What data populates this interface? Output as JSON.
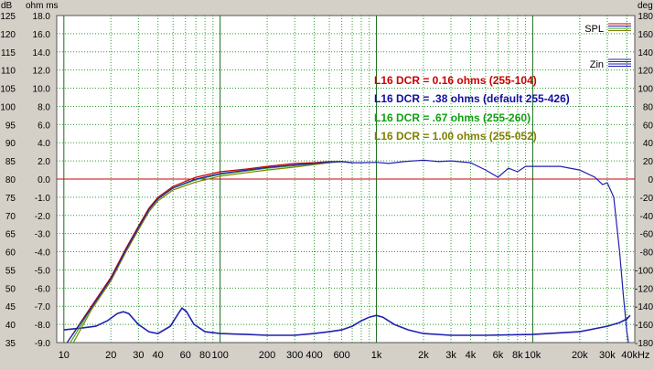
{
  "chart_data": {
    "type": "line",
    "x_scale": "log",
    "xlim": [
      9,
      45000
    ],
    "x_ticks": [
      10,
      20,
      30,
      40,
      60,
      80,
      100,
      200,
      300,
      400,
      600,
      1000,
      2000,
      3000,
      4000,
      6000,
      8000,
      10000,
      20000,
      30000,
      40000
    ],
    "x_tick_labels": [
      "10",
      "20",
      "30",
      "40",
      "60",
      "80",
      "100",
      "200",
      "300",
      "400",
      "600",
      "1k",
      "2k",
      "3k",
      "4k",
      "6k",
      "8k",
      "10k",
      "20k",
      "30k",
      "40kHz"
    ],
    "grid": true,
    "left_axes": [
      {
        "label": "dB",
        "ticks": [
          "125",
          "120",
          "115",
          "110",
          "105",
          "100",
          "95",
          "90",
          "85",
          "80",
          "75",
          "70",
          "65",
          "60",
          "55",
          "50",
          "45",
          "40",
          "35"
        ]
      },
      {
        "label": "ohm ms",
        "ticks": [
          "18.0",
          "16.0",
          "14.0",
          "12.0",
          "10.0",
          "8.0",
          "6.0",
          "4.0",
          "2.0",
          "0.0",
          "-1.0",
          "-2.0",
          "-3.0",
          "-4.0",
          "-5.0",
          "-6.0",
          "-7.0",
          "-8.0",
          "-9.0"
        ]
      }
    ],
    "spl_ylim": [
      35,
      125
    ],
    "right_axis": {
      "label": "deg",
      "ylim": [
        -180,
        180
      ],
      "ticks": [
        "180",
        "160",
        "140",
        "120",
        "100",
        "80",
        "60",
        "40",
        "20",
        "0",
        "-20",
        "-40",
        "-60",
        "-80",
        "-100",
        "-120",
        "-140",
        "-160",
        "-180"
      ]
    },
    "reference_line": {
      "axis": "spl",
      "y": 80,
      "color": "#cc0000"
    },
    "legend": {
      "position": "top-right",
      "items": [
        {
          "label": "SPL",
          "colors": [
            "#cc0000",
            "#2020b0",
            "#20b020",
            "#808000"
          ]
        },
        {
          "label": "Zin",
          "colors": [
            "#2020b0",
            "#2020b0",
            "#2020b0",
            "#2020b0"
          ]
        }
      ]
    },
    "annotations": [
      {
        "text": "L16 DCR = 0.16 ohms (255-104)",
        "color": "#cc0000"
      },
      {
        "text": "L16 DCR = .38 ohms (default 255-426)",
        "color": "#1010a0"
      },
      {
        "text": "L16 DCR = .67 ohms (255-260)",
        "color": "#10a010"
      },
      {
        "text": "L16 DCR = 1.00 ohms (255-052)",
        "color": "#808000"
      }
    ],
    "spl_series": [
      {
        "color": "#cc0000",
        "points": [
          [
            10.5,
            35
          ],
          [
            15,
            45
          ],
          [
            20,
            53
          ],
          [
            25,
            61
          ],
          [
            30,
            67
          ],
          [
            35,
            72
          ],
          [
            40,
            75
          ],
          [
            50,
            78
          ],
          [
            70,
            80.5
          ],
          [
            100,
            82
          ],
          [
            150,
            82.8
          ],
          [
            200,
            83.5
          ],
          [
            300,
            84.3
          ],
          [
            400,
            84.5
          ],
          [
            500,
            84.8
          ],
          [
            600,
            84.8
          ],
          [
            700,
            84.5
          ]
        ]
      },
      {
        "color": "#20b020",
        "points": [
          [
            11,
            35
          ],
          [
            15,
            44.5
          ],
          [
            20,
            52.5
          ],
          [
            25,
            60.5
          ],
          [
            30,
            66.5
          ],
          [
            35,
            71.5
          ],
          [
            40,
            74.5
          ],
          [
            50,
            77.5
          ],
          [
            70,
            79.8
          ],
          [
            100,
            81.3
          ],
          [
            150,
            82.3
          ],
          [
            200,
            83
          ],
          [
            300,
            83.7
          ],
          [
            400,
            84.2
          ],
          [
            500,
            84.6
          ],
          [
            600,
            84.8
          ],
          [
            700,
            84.5
          ]
        ]
      },
      {
        "color": "#808000",
        "points": [
          [
            11.5,
            35
          ],
          [
            15,
            44
          ],
          [
            20,
            52
          ],
          [
            25,
            60
          ],
          [
            30,
            66
          ],
          [
            35,
            71
          ],
          [
            40,
            74
          ],
          [
            50,
            77
          ],
          [
            70,
            79.2
          ],
          [
            100,
            80.8
          ],
          [
            150,
            81.8
          ],
          [
            200,
            82.5
          ],
          [
            300,
            83.3
          ],
          [
            400,
            84
          ],
          [
            500,
            84.5
          ],
          [
            600,
            84.8
          ],
          [
            700,
            84.5
          ]
        ]
      },
      {
        "color": "#2020b0",
        "points": [
          [
            10.5,
            35
          ],
          [
            15,
            44.6
          ],
          [
            20,
            52.6
          ],
          [
            25,
            60.6
          ],
          [
            30,
            66.6
          ],
          [
            35,
            71.6
          ],
          [
            40,
            74.6
          ],
          [
            50,
            77.6
          ],
          [
            70,
            80
          ],
          [
            100,
            81.5
          ],
          [
            150,
            82.5
          ],
          [
            200,
            83.2
          ],
          [
            300,
            83.9
          ],
          [
            400,
            84.3
          ],
          [
            500,
            84.7
          ],
          [
            600,
            84.8
          ],
          [
            700,
            84.5
          ],
          [
            800,
            84.5
          ],
          [
            1000,
            84.6
          ],
          [
            1200,
            84.3
          ],
          [
            1500,
            84.8
          ],
          [
            2000,
            85.2
          ],
          [
            2500,
            84.8
          ],
          [
            3000,
            85
          ],
          [
            4000,
            84.5
          ],
          [
            5000,
            82.5
          ],
          [
            6000,
            80.5
          ],
          [
            7000,
            83
          ],
          [
            8000,
            82
          ],
          [
            9000,
            83.5
          ],
          [
            10000,
            83.5
          ],
          [
            12000,
            83.5
          ],
          [
            15000,
            83.5
          ],
          [
            20000,
            82.5
          ],
          [
            25000,
            80.5
          ],
          [
            28000,
            78.5
          ],
          [
            30000,
            79
          ],
          [
            33000,
            75
          ],
          [
            36000,
            60
          ],
          [
            38000,
            48
          ],
          [
            40000,
            38
          ],
          [
            41000,
            35
          ]
        ]
      }
    ],
    "zin_series": [
      {
        "color": "#2020b0",
        "points": [
          [
            10,
            -8.3
          ],
          [
            13,
            -8.2
          ],
          [
            16,
            -8.1
          ],
          [
            19,
            -7.8
          ],
          [
            22,
            -7.4
          ],
          [
            24,
            -7.3
          ],
          [
            26,
            -7.4
          ],
          [
            30,
            -8.0
          ],
          [
            35,
            -8.4
          ],
          [
            40,
            -8.5
          ],
          [
            48,
            -8.1
          ],
          [
            54,
            -7.4
          ],
          [
            57,
            -7.1
          ],
          [
            61,
            -7.3
          ],
          [
            68,
            -8.0
          ],
          [
            80,
            -8.4
          ],
          [
            100,
            -8.5
          ],
          [
            150,
            -8.55
          ],
          [
            200,
            -8.6
          ],
          [
            300,
            -8.6
          ],
          [
            400,
            -8.5
          ],
          [
            500,
            -8.4
          ],
          [
            600,
            -8.3
          ],
          [
            700,
            -8.1
          ],
          [
            800,
            -7.8
          ],
          [
            900,
            -7.6
          ],
          [
            1000,
            -7.5
          ],
          [
            1100,
            -7.6
          ],
          [
            1300,
            -8.0
          ],
          [
            1600,
            -8.3
          ],
          [
            2000,
            -8.5
          ],
          [
            3000,
            -8.6
          ],
          [
            5000,
            -8.6
          ],
          [
            10000,
            -8.55
          ],
          [
            20000,
            -8.4
          ],
          [
            30000,
            -8.1
          ],
          [
            36000,
            -7.9
          ],
          [
            40000,
            -7.7
          ],
          [
            42000,
            -7.5
          ]
        ]
      }
    ]
  }
}
